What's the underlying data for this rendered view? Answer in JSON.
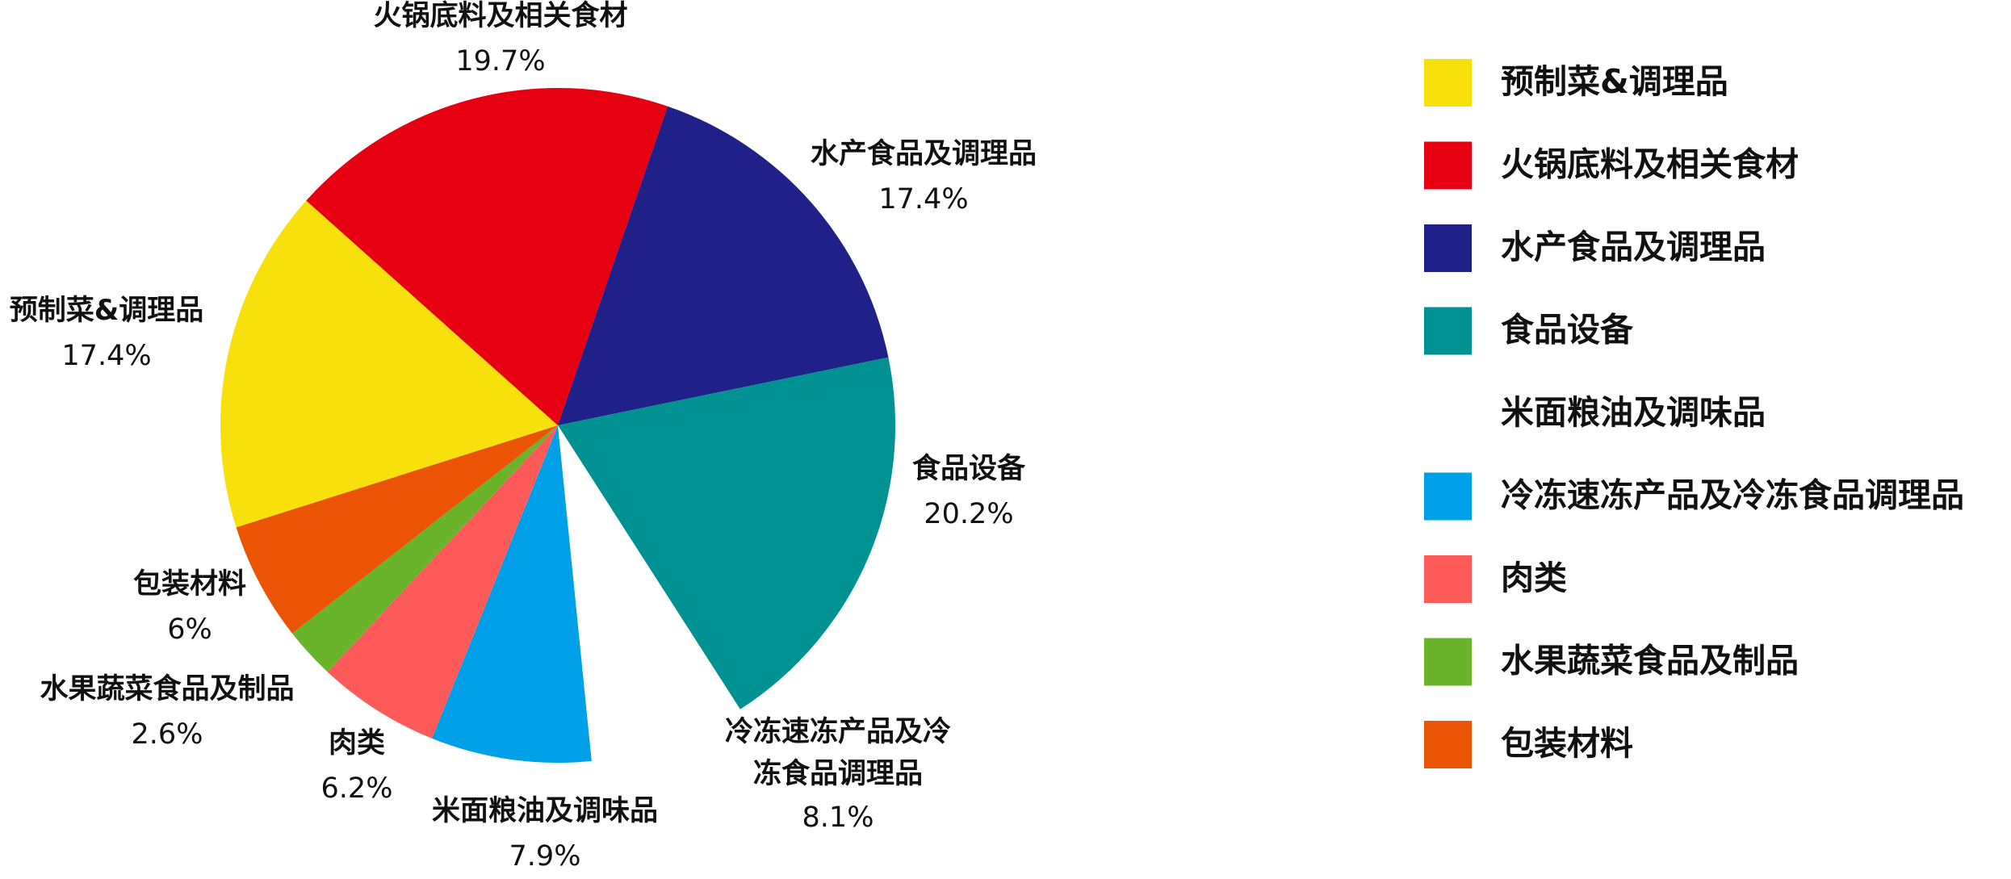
{
  "chart_data": {
    "type": "pie",
    "categories": [
      "预制菜&调理品",
      "火锅底料及相关食材",
      "水产食品及调理品",
      "食品设备",
      "米面粮油及调味品",
      "冷冻速冻产品及冷冻食品调理品",
      "肉类",
      "水果蔬菜食品及制品",
      "包装材料"
    ],
    "values": [
      17.4,
      19.7,
      17.4,
      20.2,
      7.9,
      8.1,
      6.2,
      2.6,
      6
    ],
    "value_labels": [
      "17.4%",
      "19.7%",
      "17.4%",
      "20.2%",
      "7.9%",
      "8.1%",
      "6.2%",
      "2.6%",
      "6%"
    ],
    "colors": [
      "#f8e00c",
      "#e60012",
      "#1f2088",
      "#009193",
      "#ffffff",
      "#00a0e9",
      "#ff5a5a",
      "#6ab42c",
      "#ea5404"
    ],
    "legend": "right"
  }
}
